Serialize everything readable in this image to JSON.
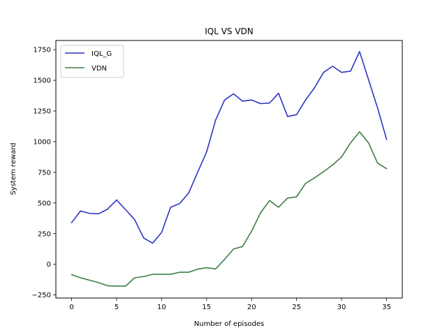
{
  "chart_data": {
    "type": "line",
    "title": "IQL VS VDN",
    "xlabel": "Number of episodes",
    "ylabel": "System reward",
    "xlim": [
      -1.75,
      36.75
    ],
    "ylim": [
      -275,
      1825
    ],
    "x": [
      0,
      1,
      2,
      3,
      4,
      5,
      6,
      7,
      8,
      9,
      10,
      11,
      12,
      13,
      14,
      15,
      16,
      17,
      18,
      19,
      20,
      21,
      22,
      23,
      24,
      25,
      26,
      27,
      28,
      29,
      30,
      31,
      32,
      33,
      34,
      35
    ],
    "xticks": [
      0,
      5,
      10,
      15,
      20,
      25,
      30,
      35
    ],
    "yticks": [
      -250,
      0,
      250,
      500,
      750,
      1000,
      1250,
      1500,
      1750
    ],
    "grid": false,
    "legend_position": "top-left",
    "series": [
      {
        "name": "IQL_G",
        "color": "#2b35c4",
        "values": [
          340,
          435,
          415,
          412,
          450,
          525,
          445,
          365,
          215,
          172,
          260,
          465,
          495,
          580,
          750,
          915,
          1175,
          1340,
          1390,
          1330,
          1340,
          1310,
          1315,
          1395,
          1205,
          1220,
          1340,
          1440,
          1565,
          1615,
          1565,
          1575,
          1735,
          1505,
          1275,
          1020
        ]
      },
      {
        "name": "VDN",
        "color": "#3d7d45",
        "values": [
          -85,
          -110,
          -130,
          -150,
          -175,
          -178,
          -178,
          -110,
          -100,
          -82,
          -82,
          -82,
          -65,
          -65,
          -40,
          -28,
          -38,
          40,
          125,
          145,
          270,
          420,
          520,
          465,
          540,
          550,
          660,
          705,
          755,
          810,
          875,
          990,
          1080,
          990,
          825,
          780
        ]
      }
    ]
  }
}
